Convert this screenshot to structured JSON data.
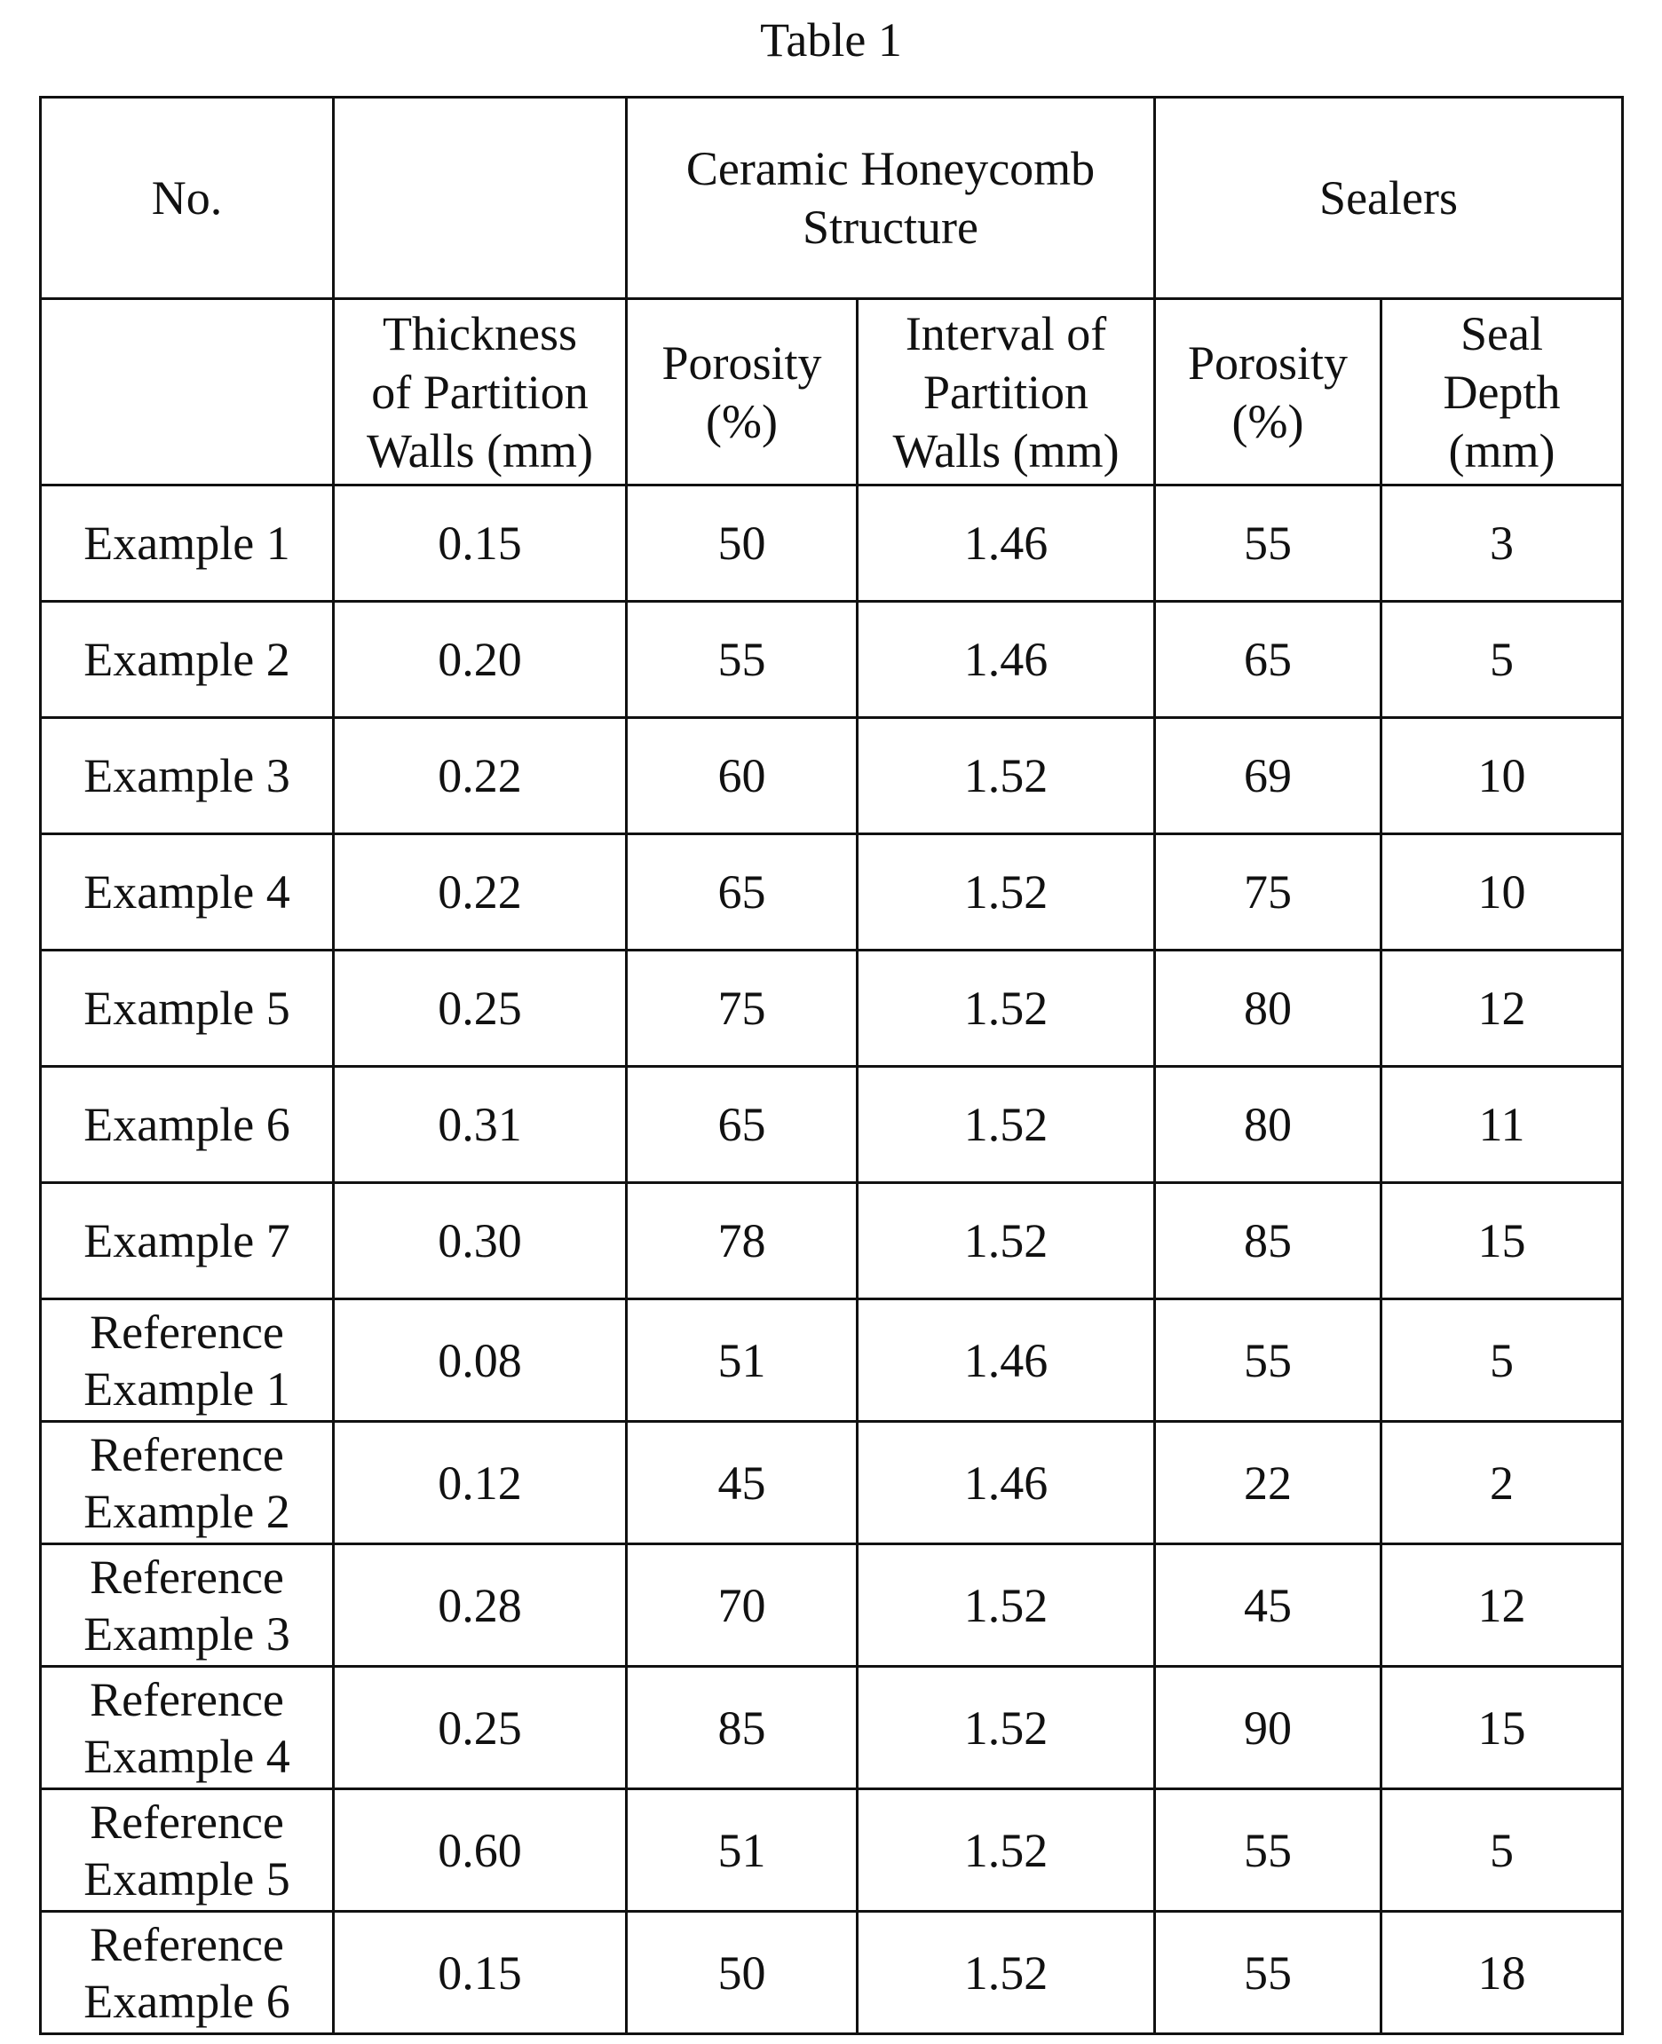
{
  "caption": "Table 1",
  "header_top": {
    "no": "No.",
    "blank": "",
    "ceramic": [
      "Ceramic Honeycomb",
      "Structure"
    ],
    "sealers": "Sealers"
  },
  "header_sub": {
    "blank": "",
    "thickness": [
      "Thickness",
      "of Partition",
      "Walls (mm)"
    ],
    "porosity_structure": [
      "Porosity",
      "(%)"
    ],
    "interval": [
      "Interval of",
      "Partition",
      "Walls (mm)"
    ],
    "porosity_sealers": [
      "Porosity",
      "(%)"
    ],
    "seal_depth": [
      "Seal",
      "Depth",
      "(mm)"
    ]
  },
  "rows": [
    {
      "name": [
        "Example 1"
      ],
      "thickness": "0.15",
      "porosity": "50",
      "interval": "1.46",
      "sealer_porosity": "55",
      "depth": "3"
    },
    {
      "name": [
        "Example 2"
      ],
      "thickness": "0.20",
      "porosity": "55",
      "interval": "1.46",
      "sealer_porosity": "65",
      "depth": "5"
    },
    {
      "name": [
        "Example 3"
      ],
      "thickness": "0.22",
      "porosity": "60",
      "interval": "1.52",
      "sealer_porosity": "69",
      "depth": "10"
    },
    {
      "name": [
        "Example 4"
      ],
      "thickness": "0.22",
      "porosity": "65",
      "interval": "1.52",
      "sealer_porosity": "75",
      "depth": "10"
    },
    {
      "name": [
        "Example 5"
      ],
      "thickness": "0.25",
      "porosity": "75",
      "interval": "1.52",
      "sealer_porosity": "80",
      "depth": "12"
    },
    {
      "name": [
        "Example 6"
      ],
      "thickness": "0.31",
      "porosity": "65",
      "interval": "1.52",
      "sealer_porosity": "80",
      "depth": "11"
    },
    {
      "name": [
        "Example 7"
      ],
      "thickness": "0.30",
      "porosity": "78",
      "interval": "1.52",
      "sealer_porosity": "85",
      "depth": "15"
    },
    {
      "name": [
        "Reference",
        "Example 1"
      ],
      "thickness": "0.08",
      "porosity": "51",
      "interval": "1.46",
      "sealer_porosity": "55",
      "depth": "5"
    },
    {
      "name": [
        "Reference",
        "Example 2"
      ],
      "thickness": "0.12",
      "porosity": "45",
      "interval": "1.46",
      "sealer_porosity": "22",
      "depth": "2"
    },
    {
      "name": [
        "Reference",
        "Example 3"
      ],
      "thickness": "0.28",
      "porosity": "70",
      "interval": "1.52",
      "sealer_porosity": "45",
      "depth": "12"
    },
    {
      "name": [
        "Reference",
        "Example 4"
      ],
      "thickness": "0.25",
      "porosity": "85",
      "interval": "1.52",
      "sealer_porosity": "90",
      "depth": "15"
    },
    {
      "name": [
        "Reference",
        "Example 5"
      ],
      "thickness": "0.60",
      "porosity": "51",
      "interval": "1.52",
      "sealer_porosity": "55",
      "depth": "5"
    },
    {
      "name": [
        "Reference",
        "Example 6"
      ],
      "thickness": "0.15",
      "porosity": "50",
      "interval": "1.52",
      "sealer_porosity": "55",
      "depth": "18"
    }
  ]
}
